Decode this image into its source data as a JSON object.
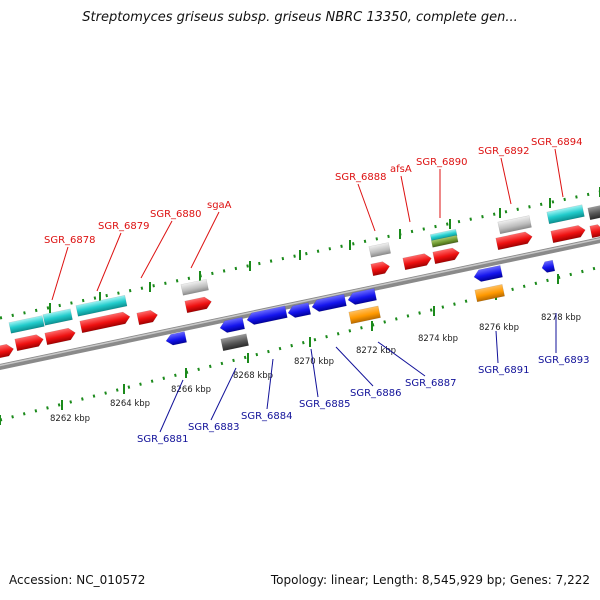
{
  "title": "Streptomyces griseus subsp. griseus NBRC 13350, complete gen...",
  "footer": {
    "accession": "Accession: NC_010572",
    "summary": "Topology: linear; Length: 8,545,929 bp; Genes: 7,222"
  },
  "colors": {
    "upper_labels": "#dd1111",
    "lower_labels": "#111199",
    "tick_marks": "#1b8a1b",
    "backbone": "#888888"
  },
  "ruler_labels": [
    "8262 kbp",
    "8264 kbp",
    "8266 kbp",
    "8268 kbp",
    "8270 kbp",
    "8272 kbp",
    "8274 kbp",
    "8276 kbp",
    "8278 kbp"
  ],
  "upper_gene_labels": [
    "SGR_6878",
    "SGR_6879",
    "SGR_6880",
    "sgaA",
    "SGR_6888",
    "afsA",
    "SGR_6890",
    "SGR_6892",
    "SGR_6894"
  ],
  "lower_gene_labels": [
    "SGR_6881",
    "SGR_6883",
    "SGR_6884",
    "SGR_6885",
    "SGR_6886",
    "SGR_6887",
    "SGR_6891",
    "SGR_6893"
  ]
}
